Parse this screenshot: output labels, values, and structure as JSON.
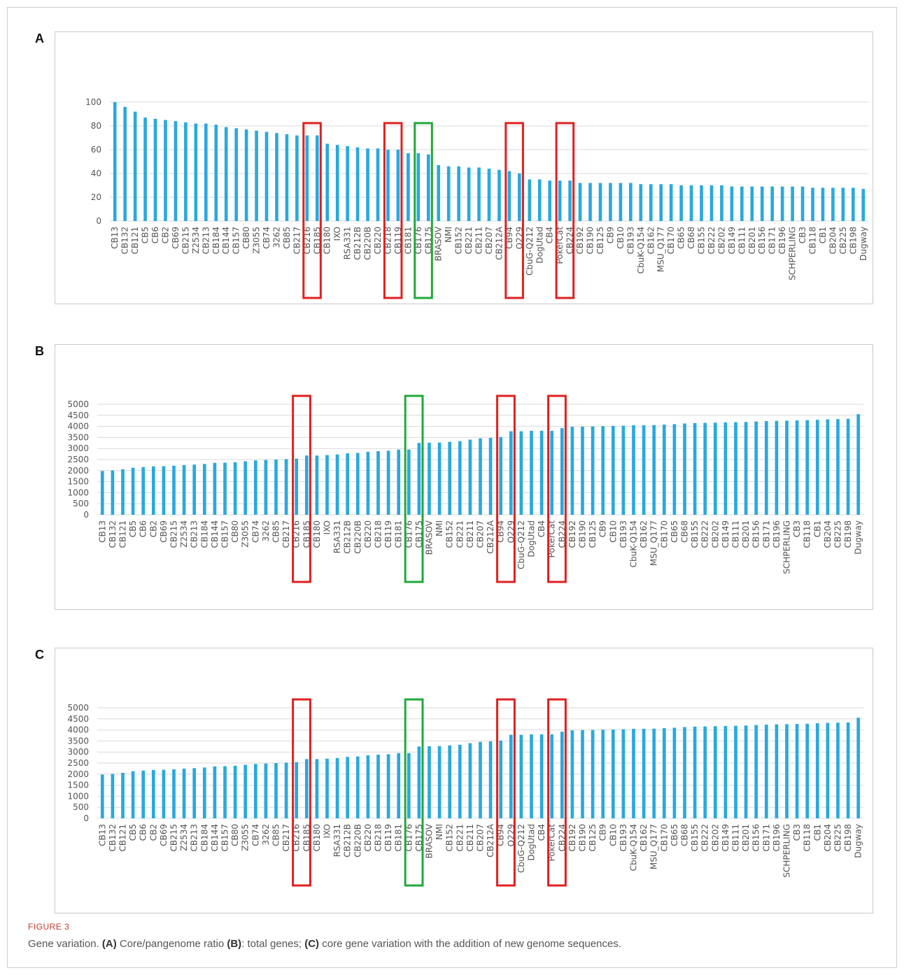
{
  "figure": {
    "label": "FIGURE 3",
    "caption": {
      "lead": "Gene variation. ",
      "a_mark": "(A)",
      "a_text": " Core/pangenome ratio ",
      "b_mark": "(B)",
      "b_text": ": total genes; ",
      "c_mark": "(C)",
      "c_text": " core gene variation with the addition of new genome sequences."
    }
  },
  "colors": {
    "bar": "#29a9df",
    "grid": "#d9d9d9",
    "red_box": "#e02020",
    "green_box": "#22a83a",
    "tick_text": "#555555"
  },
  "chart_data": [
    {
      "panel": "A",
      "type": "bar",
      "ylim": [
        0,
        100
      ],
      "yticks": [
        0,
        20,
        40,
        60,
        80,
        100
      ],
      "grid": true,
      "categories": [
        "CB13",
        "CB132",
        "CB121",
        "CB5",
        "CB6",
        "CB2",
        "CB69",
        "CB215",
        "Z2534",
        "CB213",
        "CB184",
        "CB144",
        "CB157",
        "CB80",
        "Z3055",
        "CB74",
        "3262",
        "CB85",
        "CB217",
        "CB216",
        "CB185",
        "CB180",
        "IXO",
        "RSA331",
        "CB212B",
        "CB220B",
        "CB220",
        "CB218",
        "CB119",
        "CB181",
        "CB176",
        "CB175",
        "BRASOV",
        "NMI",
        "CB152",
        "CB221",
        "CB211",
        "CB207",
        "CB212A",
        "CB94",
        "Q229",
        "CbuG-Q212",
        "DogUtad",
        "CB4",
        "PokerCat",
        "CB224",
        "CB192",
        "CB190",
        "CB125",
        "CB9",
        "CB10",
        "CB193",
        "CbuK-Q154",
        "CB162",
        "MSU_Q177",
        "CB170",
        "CB65",
        "CB68",
        "CB155",
        "CB222",
        "CB202",
        "CB149",
        "CB111",
        "CB201",
        "CB156",
        "CB171",
        "CB196",
        "SCHPERLING",
        "CB3",
        "CB118",
        "CB1",
        "CB204",
        "CB225",
        "CB198",
        "Dugway"
      ],
      "values": [
        100,
        96,
        92,
        87,
        86,
        85,
        84,
        83,
        82,
        82,
        81,
        79,
        78,
        77,
        76,
        75,
        74,
        73,
        72,
        72,
        72,
        65,
        64,
        63,
        62,
        61,
        61,
        60,
        60,
        57,
        57,
        56,
        47,
        46,
        46,
        45,
        45,
        44,
        43,
        42,
        40,
        35,
        35,
        34,
        34,
        34,
        32,
        32,
        32,
        32,
        32,
        32,
        31,
        31,
        31,
        31,
        30,
        30,
        30,
        30,
        30,
        29,
        29,
        29,
        29,
        29,
        29,
        29,
        29,
        28,
        28,
        28,
        28,
        28,
        27
      ],
      "red_boxes": [
        [
          "CB216",
          "CB185"
        ],
        [
          "CB218",
          "CB119"
        ],
        [
          "CB94",
          "Q229"
        ],
        [
          "PokerCat",
          "CB224"
        ]
      ],
      "green_boxes": [
        [
          "CB176",
          "CB175"
        ]
      ]
    },
    {
      "panel": "B",
      "type": "bar",
      "ylim": [
        0,
        5000
      ],
      "yticks": [
        0,
        500,
        1000,
        1500,
        2000,
        2500,
        3000,
        3500,
        4000,
        4500,
        5000
      ],
      "grid": true,
      "categories": [
        "CB13",
        "CB132",
        "CB121",
        "CB5",
        "CB6",
        "CB2",
        "CB69",
        "CB215",
        "Z2534",
        "CB213",
        "CB184",
        "CB144",
        "CB157",
        "CB80",
        "Z3055",
        "CB74",
        "3262",
        "CB85",
        "CB217",
        "CB216",
        "CB185",
        "CB180",
        "IXO",
        "RSA331",
        "CB212B",
        "CB220B",
        "CB220",
        "CB218",
        "CB119",
        "CB181",
        "CB176",
        "CB175",
        "BRASOV",
        "NMI",
        "CB152",
        "CB221",
        "CB211",
        "CB207",
        "CB212A",
        "CB94",
        "Q229",
        "CbuG-Q212",
        "DogUtad",
        "CB4",
        "PokerCat",
        "CB224",
        "CB192",
        "CB190",
        "CB125",
        "CB9",
        "CB10",
        "CB193",
        "CbuK-Q154",
        "CB162",
        "MSU_Q177",
        "CB170",
        "CB65",
        "CB68",
        "CB155",
        "CB222",
        "CB202",
        "CB149",
        "CB111",
        "CB201",
        "CB156",
        "CB171",
        "CB196",
        "SCHPERLING",
        "CB3",
        "CB118",
        "CB1",
        "CB204",
        "CB225",
        "CB198",
        "Dugway"
      ],
      "values": [
        1980,
        2010,
        2060,
        2130,
        2160,
        2190,
        2200,
        2220,
        2250,
        2270,
        2300,
        2350,
        2360,
        2380,
        2420,
        2460,
        2480,
        2500,
        2520,
        2540,
        2680,
        2680,
        2700,
        2730,
        2780,
        2800,
        2850,
        2880,
        2900,
        2950,
        2950,
        3250,
        3260,
        3270,
        3300,
        3330,
        3400,
        3460,
        3480,
        3520,
        3780,
        3780,
        3800,
        3800,
        3800,
        3920,
        3980,
        3990,
        4000,
        4010,
        4020,
        4030,
        4050,
        4050,
        4060,
        4080,
        4100,
        4130,
        4150,
        4160,
        4170,
        4180,
        4190,
        4200,
        4220,
        4240,
        4250,
        4260,
        4270,
        4280,
        4300,
        4320,
        4330,
        4340,
        4550
      ],
      "red_boxes": [
        [
          "CB216",
          "CB185"
        ],
        [
          "CB94",
          "Q229"
        ],
        [
          "PokerCat",
          "CB224"
        ]
      ],
      "green_boxes": [
        [
          "CB176",
          "CB175"
        ]
      ]
    },
    {
      "panel": "C",
      "type": "bar",
      "ylim": [
        0,
        5000
      ],
      "yticks": [
        0,
        500,
        1000,
        1500,
        2000,
        2500,
        3000,
        3500,
        4000,
        4500,
        5000
      ],
      "grid": true,
      "categories": [
        "CB13",
        "CB132",
        "CB121",
        "CB5",
        "CB6",
        "CB2",
        "CB69",
        "CB215",
        "Z2534",
        "CB213",
        "CB184",
        "CB144",
        "CB157",
        "CB80",
        "Z3055",
        "CB74",
        "3262",
        "CB85",
        "CB217",
        "CB216",
        "CB185",
        "CB180",
        "IXO",
        "RSA331",
        "CB212B",
        "CB220B",
        "CB220",
        "CB218",
        "CB119",
        "CB181",
        "CB176",
        "CB175",
        "BRASOV",
        "NMI",
        "CB152",
        "CB221",
        "CB211",
        "CB207",
        "CB212A",
        "CB94",
        "Q229",
        "CbuG-Q212",
        "DogUtad",
        "CB4",
        "PokerCat",
        "CB224",
        "CB192",
        "CB190",
        "CB125",
        "CB9",
        "CB10",
        "CB193",
        "CbuK-Q154",
        "CB162",
        "MSU_Q177",
        "CB170",
        "CB65",
        "CB68",
        "CB155",
        "CB222",
        "CB202",
        "CB149",
        "CB111",
        "CB201",
        "CB156",
        "CB171",
        "CB196",
        "SCHPERLING",
        "CB3",
        "CB118",
        "CB1",
        "CB204",
        "CB225",
        "CB198",
        "Dugway"
      ],
      "values": [
        1980,
        2010,
        2060,
        2130,
        2160,
        2190,
        2200,
        2220,
        2250,
        2270,
        2300,
        2350,
        2360,
        2380,
        2420,
        2460,
        2480,
        2500,
        2520,
        2540,
        2680,
        2680,
        2700,
        2730,
        2780,
        2800,
        2850,
        2880,
        2900,
        2950,
        2950,
        3250,
        3260,
        3270,
        3300,
        3330,
        3400,
        3460,
        3480,
        3520,
        3780,
        3780,
        3800,
        3800,
        3800,
        3920,
        3980,
        3990,
        4000,
        4010,
        4020,
        4030,
        4050,
        4050,
        4060,
        4080,
        4100,
        4130,
        4150,
        4160,
        4170,
        4180,
        4190,
        4200,
        4220,
        4240,
        4250,
        4260,
        4270,
        4280,
        4300,
        4320,
        4330,
        4340,
        4550
      ],
      "red_boxes": [
        [
          "CB216",
          "CB185"
        ],
        [
          "CB94",
          "Q229"
        ],
        [
          "PokerCat",
          "CB224"
        ]
      ],
      "green_boxes": [
        [
          "CB176",
          "CB175"
        ]
      ]
    }
  ]
}
